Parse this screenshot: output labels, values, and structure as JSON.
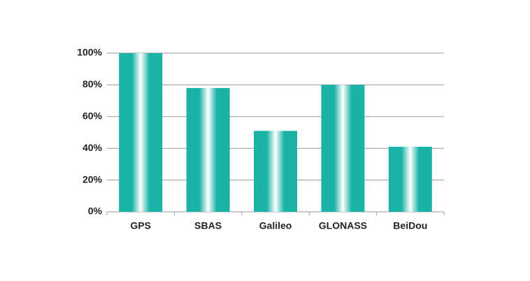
{
  "chart_data": {
    "type": "bar",
    "categories": [
      "GPS",
      "SBAS",
      "Galileo",
      "GLONASS",
      "BeiDou"
    ],
    "values": [
      100,
      78,
      51,
      80,
      41
    ],
    "color": "#1bb3a8",
    "ylim": [
      0,
      100
    ],
    "yticks": [
      {
        "value": 0,
        "label": "0%"
      },
      {
        "value": 20,
        "label": "20%"
      },
      {
        "value": 40,
        "label": "40%"
      },
      {
        "value": 60,
        "label": "60%"
      },
      {
        "value": 80,
        "label": "80%"
      },
      {
        "value": 100,
        "label": "100%"
      }
    ],
    "grid": true
  }
}
